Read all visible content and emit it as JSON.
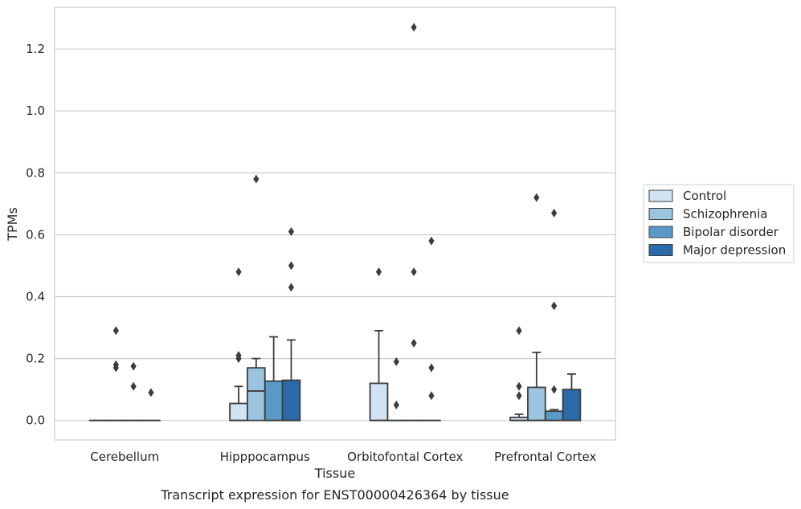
{
  "chart_data": {
    "type": "box",
    "xlabel": "Tissue",
    "ylabel": "TPMs",
    "caption": "Transcript expression for ENST00000426364 by tissue",
    "ylim": [
      -0.063,
      1.335
    ],
    "yticks": [
      "0.0",
      "0.2",
      "0.4",
      "0.6",
      "0.8",
      "1.0",
      "1.2"
    ],
    "ytick_values": [
      0.0,
      0.2,
      0.4,
      0.6,
      0.8,
      1.0,
      1.2
    ],
    "grid": "horizontal",
    "legend_position": "right",
    "categories": [
      "Cerebellum",
      "Hipppocampus",
      "Orbitofontal Cortex",
      "Prefrontal Cortex"
    ],
    "series": [
      {
        "name": "Control",
        "color": "#d1e2f2",
        "boxes": [
          {
            "q1": 0,
            "median": 0,
            "q3": 0,
            "whisker_low": 0,
            "whisker_high": 0,
            "outliers": []
          },
          {
            "q1": 0,
            "median": 0,
            "q3": 0.055,
            "whisker_low": 0,
            "whisker_high": 0.11,
            "outliers": [
              0.2,
              0.21,
              0.48
            ]
          },
          {
            "q1": 0,
            "median": 0,
            "q3": 0.12,
            "whisker_low": 0,
            "whisker_high": 0.29,
            "outliers": [
              0.48
            ]
          },
          {
            "q1": 0,
            "median": 0,
            "q3": 0.01,
            "whisker_low": 0,
            "whisker_high": 0.02,
            "outliers": [
              0.08,
              0.11,
              0.29
            ]
          }
        ]
      },
      {
        "name": "Schizophrenia",
        "color": "#9ac4df",
        "boxes": [
          {
            "q1": 0,
            "median": 0,
            "q3": 0,
            "whisker_low": 0,
            "whisker_high": 0,
            "outliers": [
              0.17,
              0.18,
              0.29
            ]
          },
          {
            "q1": 0,
            "median": 0.095,
            "q3": 0.17,
            "whisker_low": 0,
            "whisker_high": 0.2,
            "outliers": [
              0.78
            ]
          },
          {
            "q1": 0,
            "median": 0,
            "q3": 0,
            "whisker_low": 0,
            "whisker_high": 0,
            "outliers": [
              0.05,
              0.19
            ]
          },
          {
            "q1": 0,
            "median": 0,
            "q3": 0.107,
            "whisker_low": 0,
            "whisker_high": 0.22,
            "outliers": [
              0.72
            ]
          }
        ]
      },
      {
        "name": "Bipolar disorder",
        "color": "#5a9ac9",
        "boxes": [
          {
            "q1": 0,
            "median": 0,
            "q3": 0,
            "whisker_low": 0,
            "whisker_high": 0,
            "outliers": [
              0.11,
              0.175
            ]
          },
          {
            "q1": 0,
            "median": 0,
            "q3": 0.127,
            "whisker_low": 0,
            "whisker_high": 0.27,
            "outliers": []
          },
          {
            "q1": 0,
            "median": 0,
            "q3": 0,
            "whisker_low": 0,
            "whisker_high": 0,
            "outliers": [
              0.25,
              0.48,
              1.27
            ]
          },
          {
            "q1": 0,
            "median": 0,
            "q3": 0.03,
            "whisker_low": 0,
            "whisker_high": 0.035,
            "outliers": [
              0.1,
              0.37,
              0.67
            ]
          }
        ]
      },
      {
        "name": "Major depression",
        "color": "#2b6aa9",
        "boxes": [
          {
            "q1": 0,
            "median": 0,
            "q3": 0,
            "whisker_low": 0,
            "whisker_high": 0,
            "outliers": [
              0.09
            ]
          },
          {
            "q1": 0,
            "median": 0,
            "q3": 0.13,
            "whisker_low": 0,
            "whisker_high": 0.26,
            "outliers": [
              0.43,
              0.5,
              0.61
            ]
          },
          {
            "q1": 0,
            "median": 0,
            "q3": 0,
            "whisker_low": 0,
            "whisker_high": 0,
            "outliers": [
              0.08,
              0.17,
              0.58
            ]
          },
          {
            "q1": 0,
            "median": 0,
            "q3": 0.1,
            "whisker_low": 0,
            "whisker_high": 0.15,
            "outliers": []
          }
        ]
      }
    ]
  }
}
